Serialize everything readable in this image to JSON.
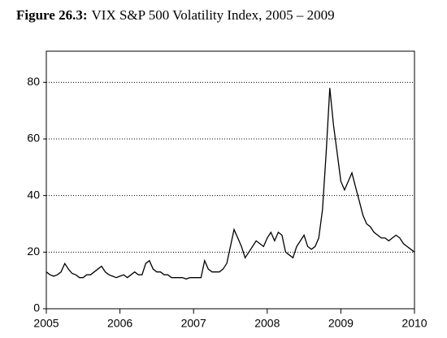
{
  "chart_data": {
    "type": "line",
    "figure_label": "Figure 26.3:",
    "title": "VIX S&P 500 Volatility Index, 2005 – 2009",
    "x": [
      2005.0,
      2005.05,
      2005.1,
      2005.15,
      2005.2,
      2005.25,
      2005.3,
      2005.35,
      2005.4,
      2005.45,
      2005.5,
      2005.55,
      2005.6,
      2005.65,
      2005.7,
      2005.75,
      2005.8,
      2005.85,
      2005.9,
      2005.95,
      2006.0,
      2006.05,
      2006.1,
      2006.15,
      2006.2,
      2006.25,
      2006.3,
      2006.35,
      2006.4,
      2006.45,
      2006.5,
      2006.55,
      2006.6,
      2006.65,
      2006.7,
      2006.75,
      2006.8,
      2006.85,
      2006.9,
      2006.95,
      2007.0,
      2007.05,
      2007.1,
      2007.15,
      2007.2,
      2007.25,
      2007.3,
      2007.35,
      2007.4,
      2007.45,
      2007.5,
      2007.55,
      2007.6,
      2007.65,
      2007.7,
      2007.75,
      2007.8,
      2007.85,
      2007.9,
      2007.95,
      2008.0,
      2008.05,
      2008.1,
      2008.15,
      2008.2,
      2008.25,
      2008.3,
      2008.35,
      2008.4,
      2008.45,
      2008.5,
      2008.55,
      2008.6,
      2008.65,
      2008.7,
      2008.75,
      2008.8,
      2008.85,
      2008.9,
      2008.95,
      2009.0,
      2009.05,
      2009.1,
      2009.15,
      2009.2,
      2009.25,
      2009.3,
      2009.35,
      2009.4,
      2009.45,
      2009.5,
      2009.55,
      2009.6,
      2009.65,
      2009.7,
      2009.75,
      2009.8,
      2009.85,
      2009.9,
      2009.95,
      2010.0
    ],
    "series": [
      {
        "color": "#000000",
        "values": [
          13,
          12,
          11.5,
          12,
          13,
          16,
          14,
          12.5,
          12,
          11,
          11,
          12,
          12,
          13,
          14,
          15,
          13,
          12,
          11.5,
          11,
          11.5,
          12,
          11,
          12,
          13,
          12,
          12,
          16,
          17,
          14,
          13,
          13,
          12,
          12,
          11,
          11,
          11,
          11,
          10.5,
          11,
          11,
          11,
          11,
          17,
          14,
          13,
          13,
          13,
          14,
          16,
          22,
          28,
          25,
          22,
          18,
          20,
          22,
          24,
          23,
          22,
          25,
          27,
          24,
          27,
          26,
          20,
          19,
          18,
          22,
          24,
          26,
          22,
          21,
          22,
          25,
          35,
          55,
          78,
          65,
          55,
          45,
          42,
          45,
          48,
          43,
          38,
          33,
          30,
          29,
          27,
          26,
          25,
          25,
          24,
          25,
          26,
          25,
          23,
          22,
          21,
          20
        ]
      }
    ],
    "xlim": [
      2005,
      2010
    ],
    "xticks": [
      2005,
      2006,
      2007,
      2008,
      2009,
      2010
    ],
    "ylim": [
      0,
      91
    ],
    "yticks": [
      0,
      20,
      40,
      60,
      80
    ],
    "grid": true
  }
}
